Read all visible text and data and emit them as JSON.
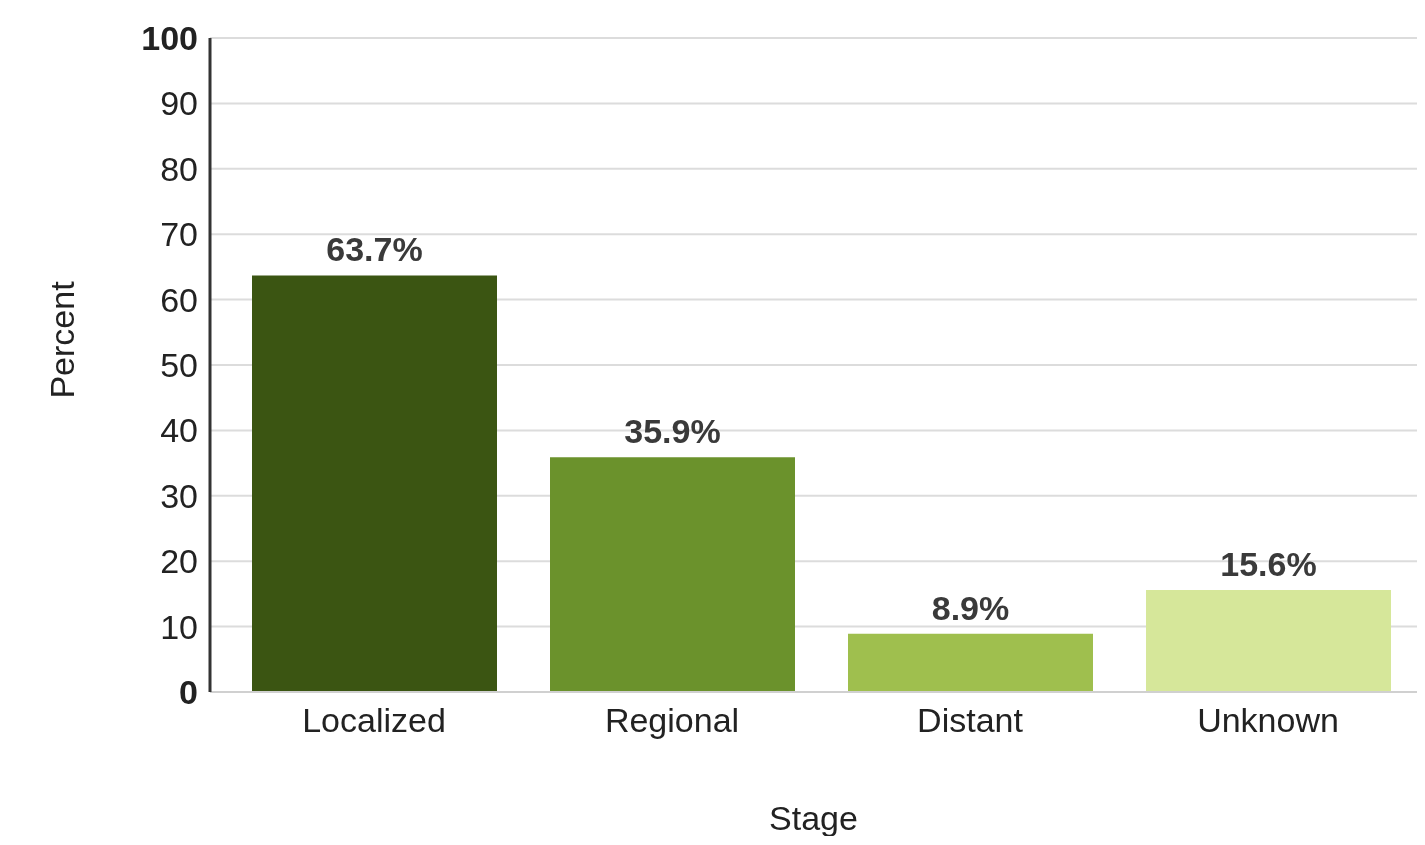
{
  "chart_data": {
    "type": "bar",
    "xlabel": "Stage",
    "ylabel": "Percent",
    "categories": [
      "Localized",
      "Regional",
      "Distant",
      "Unknown"
    ],
    "values": [
      63.7,
      35.9,
      8.9,
      15.6
    ],
    "value_labels": [
      "63.7%",
      "35.9%",
      "8.9%",
      "15.6%"
    ],
    "colors": [
      "#3b5512",
      "#6b922c",
      "#9fbf4e",
      "#d6e79a"
    ],
    "ylim": [
      0,
      100
    ],
    "yticks": [
      0,
      10,
      20,
      30,
      40,
      50,
      60,
      70,
      80,
      90,
      100
    ],
    "grid": "y"
  }
}
